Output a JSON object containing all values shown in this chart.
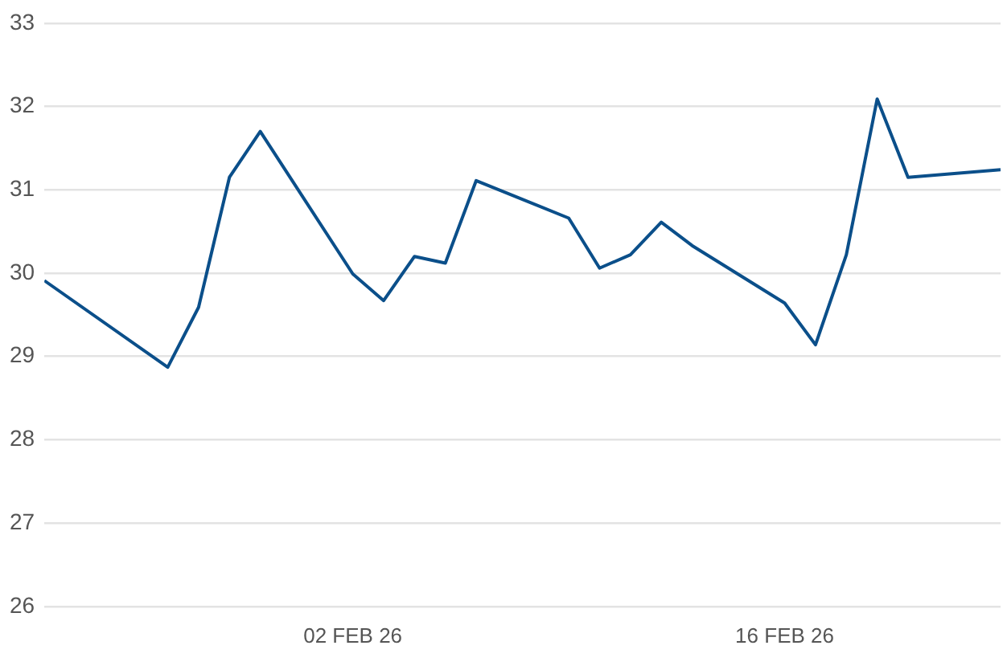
{
  "chart_data": {
    "type": "line",
    "x": [
      "--01-23",
      "--01-27",
      "--01-28",
      "--01-29",
      "--01-30",
      "--02-02",
      "--02-03",
      "--02-04",
      "--02-05",
      "--02-06",
      "--02-09",
      "--02-10",
      "--02-11",
      "--02-12",
      "--02-13",
      "--02-16",
      "--02-17",
      "--02-18",
      "--02-19",
      "--02-20",
      "--02-23"
    ],
    "series": [
      {
        "color": "#0b4f8a",
        "values": [
          29.91,
          28.87,
          29.59,
          31.15,
          31.7,
          29.99,
          29.67,
          30.2,
          30.12,
          31.11,
          30.66,
          30.06,
          30.22,
          30.61,
          30.33,
          29.64,
          29.14,
          30.22,
          32.09,
          31.15,
          31.24
        ]
      }
    ],
    "xlim": [
      "--01-23",
      "--02-23"
    ],
    "xticks": [
      {
        "value": "--02-02",
        "label": "02 FEB 26"
      },
      {
        "value": "--02-16",
        "label": "16 FEB 26"
      }
    ],
    "ylim": [
      26,
      33
    ],
    "yticks": [
      26,
      27,
      28,
      29,
      30,
      31,
      32,
      33
    ],
    "grid": "y",
    "legend": false,
    "marker": "none",
    "line_style": "solid"
  }
}
